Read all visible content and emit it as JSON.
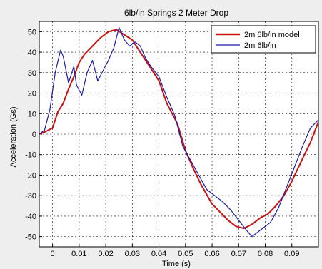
{
  "chart_data": {
    "type": "line",
    "title": "6lb/in Springs 2 Meter Drop",
    "xlabel": "Time (s)",
    "ylabel": "Acceleration (Gs)",
    "xlim": [
      -0.005,
      0.1
    ],
    "ylim": [
      -55,
      55
    ],
    "grid": true,
    "legend_position": "top-right",
    "x_ticks": [
      0,
      0.01,
      0.02,
      0.03,
      0.04,
      0.05,
      0.06,
      0.07,
      0.08,
      0.09
    ],
    "x_tick_labels": [
      "0",
      "0.01",
      "0.02",
      "0.03",
      "0.04",
      "0.05",
      "0.06",
      "0.07",
      "0.08",
      "0.09"
    ],
    "y_ticks": [
      50,
      40,
      30,
      20,
      10,
      0,
      -10,
      -20,
      -30,
      -40,
      -50
    ],
    "y_tick_labels": [
      "50",
      "40",
      "30",
      "20",
      "10",
      "0",
      "-10",
      "-20",
      "-30",
      "-40",
      "-50"
    ],
    "legend": [
      "2m 6lb/in model",
      "2m 6lb/in"
    ],
    "series": [
      {
        "name": "2m 6lb/in model",
        "color": "#cc1111",
        "points": [
          [
            -0.005,
            0
          ],
          [
            -0.003,
            1
          ],
          [
            0,
            3
          ],
          [
            0.002,
            11
          ],
          [
            0.004,
            15
          ],
          [
            0.006,
            22
          ],
          [
            0.008,
            28
          ],
          [
            0.01,
            35
          ],
          [
            0.012,
            39
          ],
          [
            0.015,
            43
          ],
          [
            0.018,
            47
          ],
          [
            0.021,
            50
          ],
          [
            0.024,
            51
          ],
          [
            0.027,
            48.5
          ],
          [
            0.03,
            46
          ],
          [
            0.033,
            40
          ],
          [
            0.036,
            34
          ],
          [
            0.04,
            26
          ],
          [
            0.043,
            15
          ],
          [
            0.047,
            5
          ],
          [
            0.05,
            -8
          ],
          [
            0.053,
            -17
          ],
          [
            0.056,
            -25
          ],
          [
            0.06,
            -34
          ],
          [
            0.063,
            -38
          ],
          [
            0.066,
            -42
          ],
          [
            0.069,
            -45
          ],
          [
            0.072,
            -46
          ],
          [
            0.075,
            -44
          ],
          [
            0.078,
            -41
          ],
          [
            0.081,
            -39
          ],
          [
            0.084,
            -35
          ],
          [
            0.087,
            -30
          ],
          [
            0.09,
            -23
          ],
          [
            0.094,
            -12
          ],
          [
            0.097,
            -4
          ],
          [
            0.1,
            6
          ]
        ]
      },
      {
        "name": "2m 6lb/in",
        "color": "#1a1aaa",
        "points": [
          [
            -0.005,
            0
          ],
          [
            -0.003,
            2
          ],
          [
            -0.001,
            12
          ],
          [
            0.001,
            30
          ],
          [
            0.003,
            41
          ],
          [
            0.004,
            38
          ],
          [
            0.006,
            25
          ],
          [
            0.008,
            33
          ],
          [
            0.009,
            24
          ],
          [
            0.011,
            19
          ],
          [
            0.013,
            30
          ],
          [
            0.015,
            36
          ],
          [
            0.017,
            26
          ],
          [
            0.019,
            31
          ],
          [
            0.021,
            36
          ],
          [
            0.023,
            42
          ],
          [
            0.025,
            52
          ],
          [
            0.027,
            46
          ],
          [
            0.029,
            43
          ],
          [
            0.031,
            45
          ],
          [
            0.033,
            43
          ],
          [
            0.035,
            37
          ],
          [
            0.037,
            33
          ],
          [
            0.04,
            28
          ],
          [
            0.043,
            18
          ],
          [
            0.046,
            9
          ],
          [
            0.049,
            -6
          ],
          [
            0.052,
            -13
          ],
          [
            0.055,
            -20
          ],
          [
            0.058,
            -27
          ],
          [
            0.061,
            -30
          ],
          [
            0.064,
            -33
          ],
          [
            0.067,
            -37
          ],
          [
            0.07,
            -42
          ],
          [
            0.073,
            -47
          ],
          [
            0.075,
            -50
          ],
          [
            0.077,
            -48
          ],
          [
            0.079,
            -46
          ],
          [
            0.082,
            -43
          ],
          [
            0.085,
            -36
          ],
          [
            0.088,
            -26
          ],
          [
            0.091,
            -16
          ],
          [
            0.094,
            -6
          ],
          [
            0.097,
            3
          ],
          [
            0.1,
            7
          ]
        ]
      }
    ]
  }
}
